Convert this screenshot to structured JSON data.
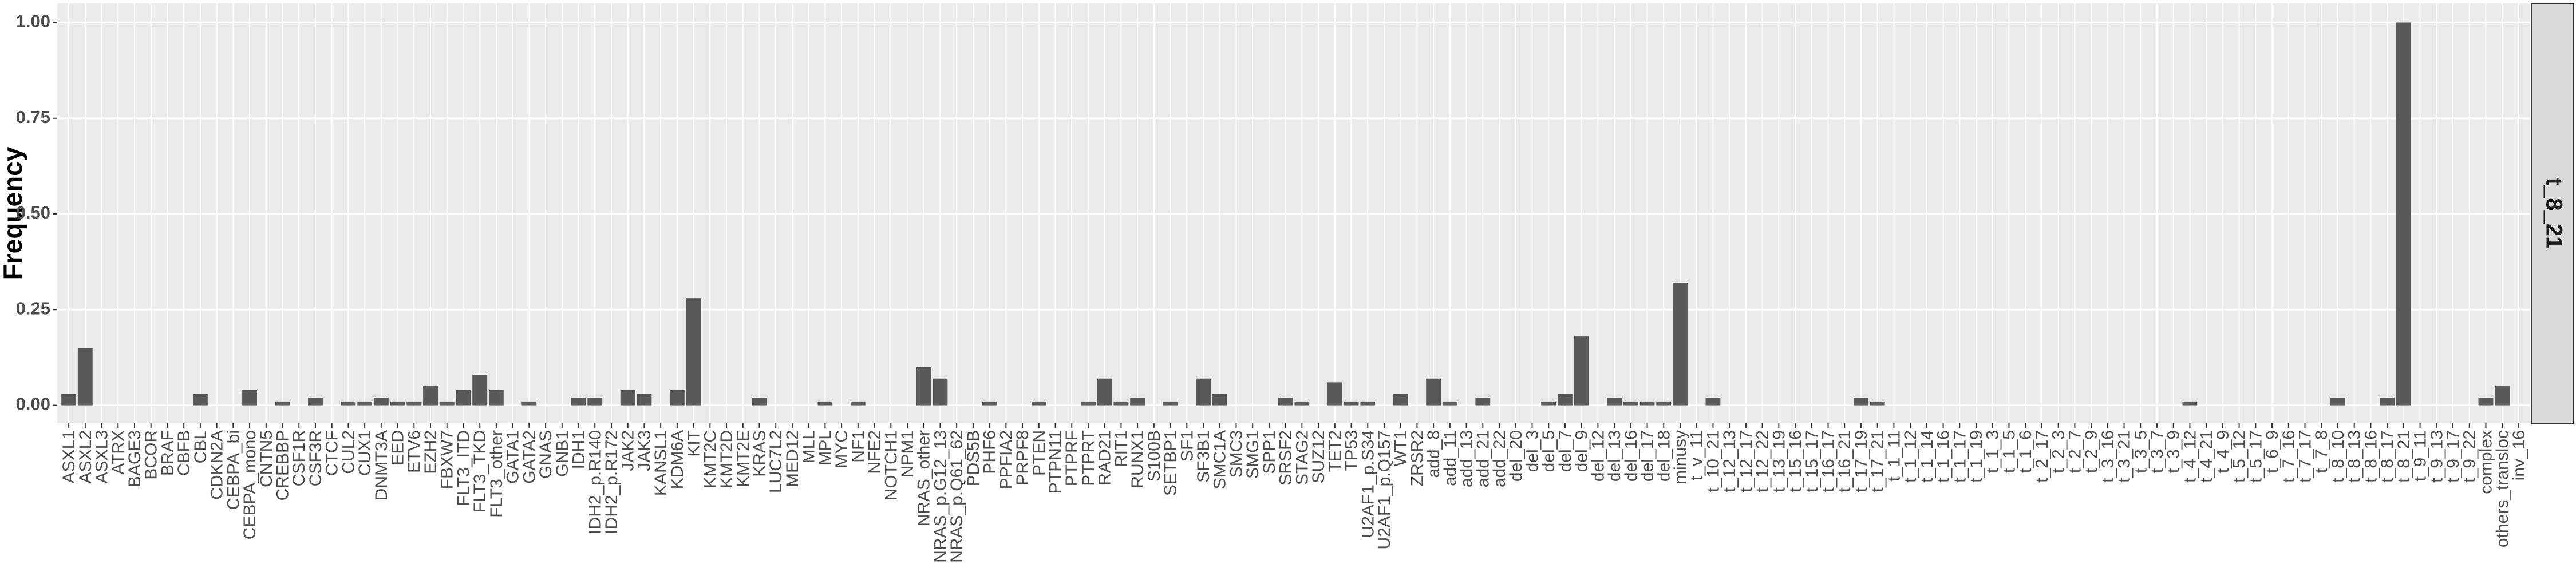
{
  "chart_data": {
    "type": "bar",
    "ylabel": "Frequency",
    "facet": "t_8_21",
    "categories": [
      "ASXL1",
      "ASXL2",
      "ASXL3",
      "ATRX",
      "BAGE3",
      "BCOR",
      "BRAF",
      "CBFB",
      "CBL",
      "CDKN2A",
      "CEBPA_bi",
      "CEBPA_mono",
      "CNTN5",
      "CREBBP",
      "CSF1R",
      "CSF3R",
      "CTCF",
      "CUL2",
      "CUX1",
      "DNMT3A",
      "EED",
      "ETV6",
      "EZH2",
      "FBXW7",
      "FLT3_ITD",
      "FLT3_TKD",
      "FLT3_other",
      "GATA1",
      "GATA2",
      "GNAS",
      "GNB1",
      "IDH1",
      "IDH2_p.R140",
      "IDH2_p.R172",
      "JAK2",
      "JAK3",
      "KANSL1",
      "KDM6A",
      "KIT",
      "KMT2C",
      "KMT2D",
      "KMT2E",
      "KRAS",
      "LUC7L2",
      "MED12",
      "MLL",
      "MPL",
      "MYC",
      "NF1",
      "NFE2",
      "NOTCH1",
      "NPM1",
      "NRAS_other",
      "NRAS_p.G12_13",
      "NRAS_p.Q61_62",
      "PDS5B",
      "PHF6",
      "PPFIA2",
      "PRPF8",
      "PTEN",
      "PTPN11",
      "PTPRF",
      "PTPRT",
      "RAD21",
      "RIT1",
      "RUNX1",
      "S100B",
      "SETBP1",
      "SF1",
      "SF3B1",
      "SMC1A",
      "SMC3",
      "SMG1",
      "SPP1",
      "SRSF2",
      "STAG2",
      "SUZ12",
      "TET2",
      "TP53",
      "U2AF1_p.S34",
      "U2AF1_p.Q157",
      "WT1",
      "ZRSR2",
      "add_8",
      "add_11",
      "add_13",
      "add_21",
      "add_22",
      "del_20",
      "del_3",
      "del_5",
      "del_7",
      "del_9",
      "del_12",
      "del_13",
      "del_16",
      "del_17",
      "del_18",
      "minusy",
      "t_v_11",
      "t_10_21",
      "t_12_13",
      "t_12_17",
      "t_12_22",
      "t_13_19",
      "t_15_16",
      "t_15_17",
      "t_16_17",
      "t_16_21",
      "t_17_19",
      "t_17_21",
      "t_1_11",
      "t_1_12",
      "t_1_14",
      "t_1_16",
      "t_1_17",
      "t_1_19",
      "t_1_3",
      "t_1_5",
      "t_1_6",
      "t_2_17",
      "t_2_3",
      "t_2_7",
      "t_2_9",
      "t_3_16",
      "t_3_21",
      "t_3_5",
      "t_3_7",
      "t_3_9",
      "t_4_12",
      "t_4_21",
      "t_4_9",
      "t_5_12",
      "t_5_17",
      "t_6_9",
      "t_7_16",
      "t_7_17",
      "t_7_8",
      "t_8_10",
      "t_8_13",
      "t_8_16",
      "t_8_17",
      "t_8_21",
      "t_9_11",
      "t_9_13",
      "t_9_17",
      "t_9_22",
      "complex",
      "others_transloc",
      "inv_16"
    ],
    "values": [
      0.03,
      0.15,
      0,
      0,
      0,
      0,
      0,
      0,
      0.03,
      0,
      0,
      0.04,
      0,
      0.01,
      0,
      0.02,
      0,
      0.01,
      0.01,
      0.02,
      0.01,
      0.01,
      0.05,
      0.01,
      0.04,
      0.08,
      0.04,
      0,
      0.01,
      0,
      0,
      0.02,
      0.02,
      0,
      0.04,
      0.03,
      0,
      0.04,
      0.28,
      0,
      0,
      0,
      0.02,
      0,
      0,
      0,
      0.01,
      0,
      0.01,
      0,
      0,
      0,
      0.1,
      0.07,
      0,
      0,
      0.01,
      0,
      0,
      0.01,
      0,
      0,
      0.01,
      0.07,
      0.01,
      0.02,
      0,
      0.01,
      0,
      0.07,
      0.03,
      0,
      0,
      0,
      0.02,
      0.01,
      0,
      0.06,
      0.01,
      0.01,
      0,
      0.03,
      0,
      0.07,
      0.01,
      0,
      0.02,
      0,
      0,
      0,
      0.01,
      0.03,
      0.18,
      0,
      0.02,
      0.01,
      0.01,
      0.01,
      0.32,
      0,
      0.02,
      0,
      0,
      0,
      0,
      0,
      0,
      0,
      0,
      0.02,
      0.01,
      0,
      0,
      0,
      0,
      0,
      0,
      0,
      0,
      0,
      0,
      0,
      0,
      0,
      0,
      0,
      0,
      0,
      0,
      0.01,
      0,
      0,
      0,
      0,
      0,
      0,
      0,
      0,
      0.02,
      0,
      0,
      0.02,
      1.0,
      0,
      0,
      0,
      0,
      0.02,
      0.05,
      0
    ],
    "color": "#595959",
    "ylim": [
      -0.047,
      1.05
    ],
    "yticks": [
      {
        "value": 0,
        "label": "0.00"
      },
      {
        "value": 0.25,
        "label": "0.25"
      },
      {
        "value": 0.5,
        "label": "0.50"
      },
      {
        "value": 0.75,
        "label": "0.75"
      },
      {
        "value": 1,
        "label": "1.00"
      }
    ],
    "grid": true
  }
}
